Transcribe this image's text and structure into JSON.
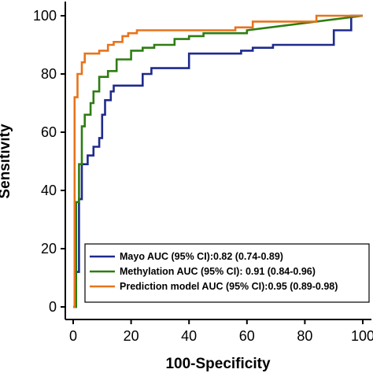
{
  "chart_data": {
    "type": "line",
    "xlabel": "100-Specificity",
    "ylabel": "Sensitivity",
    "xlim": [
      0,
      100
    ],
    "ylim": [
      0,
      100
    ],
    "xticks": [
      "0",
      "20",
      "40",
      "60",
      "80",
      "100"
    ],
    "yticks": [
      "0",
      "20",
      "40",
      "60",
      "80",
      "100"
    ],
    "legend_position": "bottom-right",
    "series": [
      {
        "name": "Mayo AUC (95% CI):0.82 (0.74-0.89)",
        "color": "#1f2a8c",
        "x": [
          0,
          1,
          1,
          2,
          2,
          3,
          3,
          5,
          5,
          7,
          7,
          9,
          9,
          10,
          10,
          11,
          11,
          13,
          13,
          14,
          14,
          18,
          18,
          24,
          24,
          27,
          27,
          40,
          40,
          58,
          58,
          62,
          62,
          69,
          69,
          90,
          90,
          96,
          96,
          100
        ],
        "y": [
          0,
          0,
          12,
          12,
          37,
          37,
          49,
          49,
          52,
          52,
          55,
          55,
          58,
          58,
          66,
          66,
          71,
          71,
          74,
          74,
          76,
          76,
          76,
          76,
          80,
          80,
          82,
          82,
          87,
          87,
          88,
          88,
          89,
          89,
          90,
          90,
          95,
          95,
          100,
          100
        ]
      },
      {
        "name": "Methylation AUC (95% CI): 0.91 (0.84-0.96)",
        "color": "#2e7d12",
        "x": [
          0,
          1,
          1,
          2,
          2,
          3,
          3,
          4,
          4,
          6,
          6,
          7,
          7,
          9,
          9,
          12,
          12,
          15,
          15,
          20,
          20,
          24,
          24,
          28,
          28,
          35,
          35,
          40,
          40,
          45,
          45,
          60,
          60,
          100
        ],
        "y": [
          0,
          0,
          36,
          36,
          49,
          49,
          62,
          62,
          66,
          66,
          70,
          70,
          74,
          74,
          79,
          79,
          81,
          81,
          85,
          85,
          88,
          88,
          89,
          89,
          90,
          90,
          92,
          92,
          93,
          93,
          94,
          94,
          95,
          100
        ]
      },
      {
        "name": "Prediction model AUC (95% CI):0.95 (0.89-0.98)",
        "color": "#e8731c",
        "x": [
          0,
          0.5,
          0.5,
          1.5,
          1.5,
          3,
          3,
          4,
          4,
          9,
          9,
          12,
          12,
          14,
          14,
          17,
          17,
          19,
          19,
          22,
          22,
          56,
          56,
          62,
          62,
          84,
          84,
          100
        ],
        "y": [
          0,
          0,
          72,
          72,
          80,
          80,
          84,
          84,
          87,
          87,
          88,
          88,
          90,
          90,
          91,
          91,
          93,
          93,
          94,
          94,
          95,
          95,
          96,
          96,
          98,
          98,
          100,
          100
        ]
      }
    ]
  }
}
